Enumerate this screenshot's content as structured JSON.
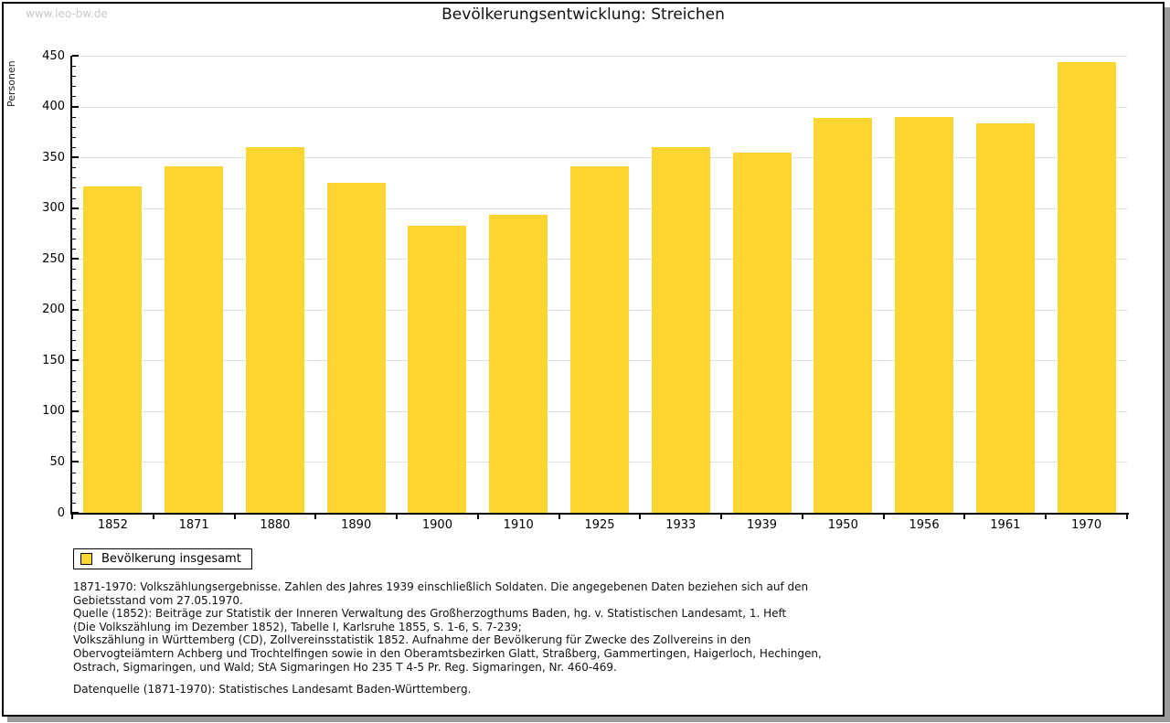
{
  "watermark": "www.leo-bw.de",
  "chart_data": {
    "type": "bar",
    "title": "Bevölkerungsentwicklung: Streichen",
    "ylabel": "Personen",
    "xlabel": "",
    "categories": [
      "1852",
      "1871",
      "1880",
      "1890",
      "1900",
      "1910",
      "1925",
      "1933",
      "1939",
      "1950",
      "1956",
      "1961",
      "1970"
    ],
    "values": [
      321,
      341,
      360,
      325,
      283,
      293,
      341,
      360,
      355,
      389,
      390,
      383,
      444
    ],
    "ylim": [
      0,
      450
    ],
    "ytick_step": 50,
    "ytick_minor_step": 10,
    "grid": true,
    "bar_color": "#fdd530",
    "legend": {
      "label": "Bevölkerung insgesamt",
      "position": "bottom-left"
    }
  },
  "footer": {
    "notes_lines": [
      "1871-1970: Volkszählungsergebnisse. Zahlen des Jahres 1939 einschließlich Soldaten. Die angegebenen Daten beziehen sich auf den",
      "Gebietsstand vom 27.05.1970.",
      "Quelle (1852): Beiträge zur Statistik der Inneren Verwaltung des Großherzogthums Baden, hg. v. Statistischen Landesamt, 1. Heft",
      "(Die Volkszählung im Dezember 1852), Tabelle I, Karlsruhe 1855, S. 1-6, S. 7-239;",
      "Volkszählung in Württemberg (CD), Zollvereinsstatistik 1852. Aufnahme der Bevölkerung für Zwecke des Zollvereins in den",
      "Obervogteiämtern Achberg und Trochtelfingen sowie in den Oberamtsbezirken Glatt, Straßberg, Gammertingen, Haigerloch, Hechingen,",
      "Ostrach, Sigmaringen, und Wald; StA Sigmaringen Ho 235 T 4-5 Pr. Reg. Sigmaringen, Nr. 460-469."
    ],
    "source_line": "Datenquelle (1871-1970): Statistisches Landesamt Baden-Württemberg."
  }
}
